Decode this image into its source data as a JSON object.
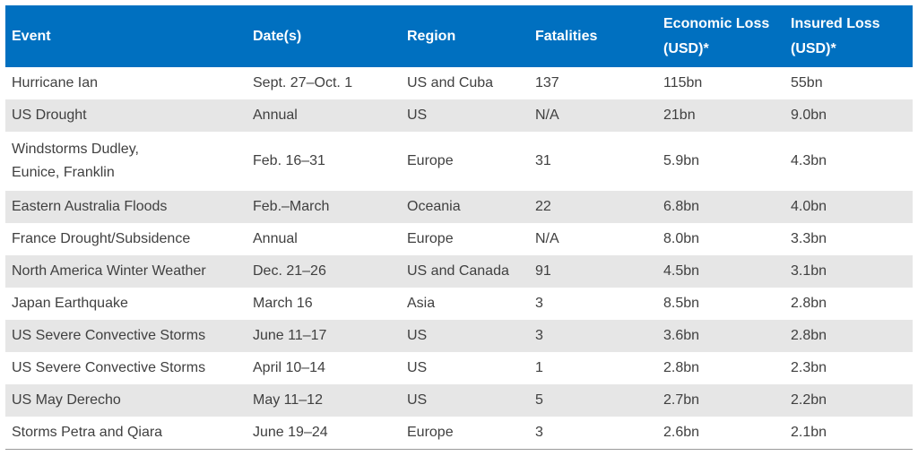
{
  "table": {
    "headers": [
      [
        "Event"
      ],
      [
        "Date(s)"
      ],
      [
        "Region"
      ],
      [
        "Fatalities"
      ],
      [
        "Economic Loss",
        "(USD)*"
      ],
      [
        "Insured Loss",
        "(USD)*"
      ]
    ],
    "rows": [
      {
        "event": [
          "Hurricane Ian"
        ],
        "dates": "Sept. 27–Oct. 1",
        "region": "US and Cuba",
        "fatalities": "137",
        "economic_loss": "115bn",
        "insured_loss": "55bn"
      },
      {
        "event": [
          "US Drought"
        ],
        "dates": "Annual",
        "region": "US",
        "fatalities": "N/A",
        "economic_loss": "21bn",
        "insured_loss": "9.0bn"
      },
      {
        "event": [
          "Windstorms Dudley,",
          "Eunice, Franklin"
        ],
        "dates": "Feb. 16–31",
        "region": "Europe",
        "fatalities": "31",
        "economic_loss": "5.9bn",
        "insured_loss": "4.3bn"
      },
      {
        "event": [
          "Eastern Australia Floods"
        ],
        "dates": "Feb.–March",
        "region": "Oceania",
        "fatalities": "22",
        "economic_loss": "6.8bn",
        "insured_loss": "4.0bn"
      },
      {
        "event": [
          "France Drought/Subsidence"
        ],
        "dates": "Annual",
        "region": "Europe",
        "fatalities": "N/A",
        "economic_loss": "8.0bn",
        "insured_loss": "3.3bn"
      },
      {
        "event": [
          "North America Winter Weather"
        ],
        "dates": "Dec. 21–26",
        "region": "US and Canada",
        "fatalities": "91",
        "economic_loss": "4.5bn",
        "insured_loss": "3.1bn"
      },
      {
        "event": [
          "Japan Earthquake"
        ],
        "dates": "March 16",
        "region": "Asia",
        "fatalities": "3",
        "economic_loss": "8.5bn",
        "insured_loss": "2.8bn"
      },
      {
        "event": [
          "US Severe Convective Storms"
        ],
        "dates": "June 11–17",
        "region": "US",
        "fatalities": "3",
        "economic_loss": "3.6bn",
        "insured_loss": "2.8bn"
      },
      {
        "event": [
          "US Severe Convective Storms"
        ],
        "dates": "April 10–14",
        "region": "US",
        "fatalities": "1",
        "economic_loss": "2.8bn",
        "insured_loss": "2.3bn"
      },
      {
        "event": [
          "US May Derecho"
        ],
        "dates": "May 11–12",
        "region": "US",
        "fatalities": "5",
        "economic_loss": "2.7bn",
        "insured_loss": "2.2bn"
      },
      {
        "event": [
          "Storms Petra and Qiara"
        ],
        "dates": "June 19–24",
        "region": "Europe",
        "fatalities": "3",
        "economic_loss": "2.6bn",
        "insured_loss": "2.1bn"
      }
    ]
  },
  "colors": {
    "header_background": "#0070c0",
    "header_text": "#ffffff",
    "alt_row_background": "#e6e6e6",
    "body_text": "#404040"
  }
}
